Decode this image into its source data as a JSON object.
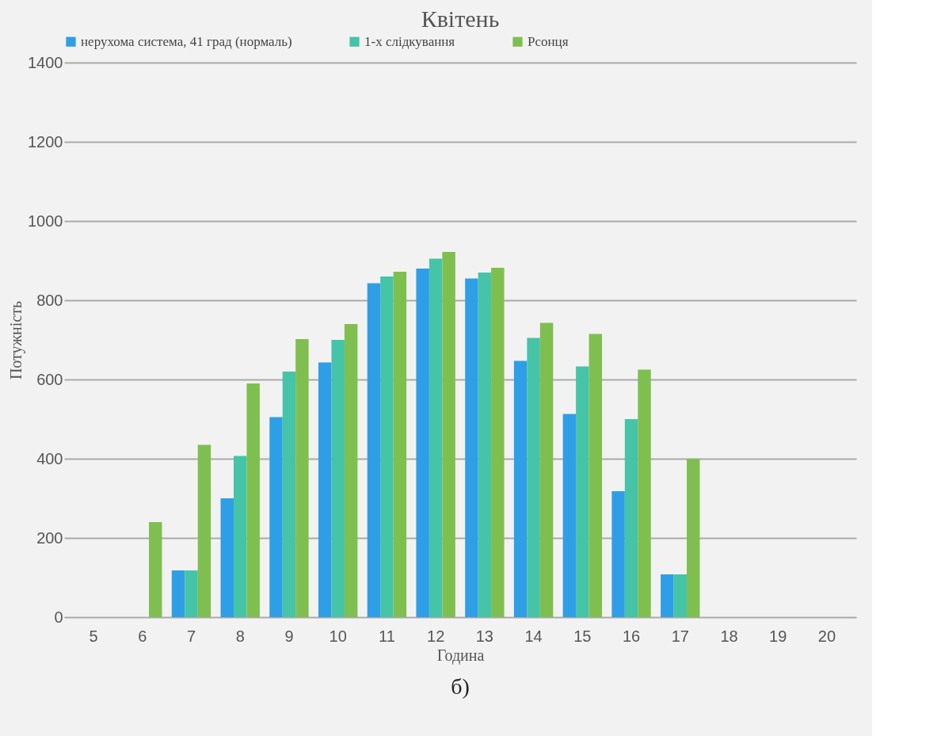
{
  "chart_data": {
    "type": "bar",
    "title": "Квітень",
    "xlabel": "Година",
    "ylabel": "Потужність",
    "categories": [
      "5",
      "6",
      "7",
      "8",
      "9",
      "10",
      "11",
      "12",
      "13",
      "14",
      "15",
      "16",
      "17",
      "18",
      "19",
      "20"
    ],
    "series": [
      {
        "name": "нерухома система, 41 град (нормаль)",
        "color": "#2e9fe6",
        "values": [
          0,
          0,
          118,
          300,
          505,
          643,
          843,
          880,
          855,
          647,
          513,
          318,
          108,
          0,
          0,
          0
        ]
      },
      {
        "name": "1-х слідкування",
        "color": "#45c4a8",
        "values": [
          0,
          0,
          118,
          407,
          620,
          700,
          860,
          905,
          870,
          705,
          633,
          500,
          108,
          0,
          0,
          0
        ]
      },
      {
        "name": "Pсонця",
        "color": "#7fbf50",
        "values": [
          0,
          240,
          435,
          590,
          702,
          740,
          872,
          922,
          882,
          743,
          715,
          625,
          400,
          0,
          0,
          0
        ]
      }
    ],
    "ylim": [
      0,
      1400
    ],
    "yticks": [
      0,
      200,
      400,
      600,
      800,
      1000,
      1200,
      1400
    ],
    "grid": "y",
    "legend": "top",
    "annotations": [
      "б)"
    ]
  }
}
